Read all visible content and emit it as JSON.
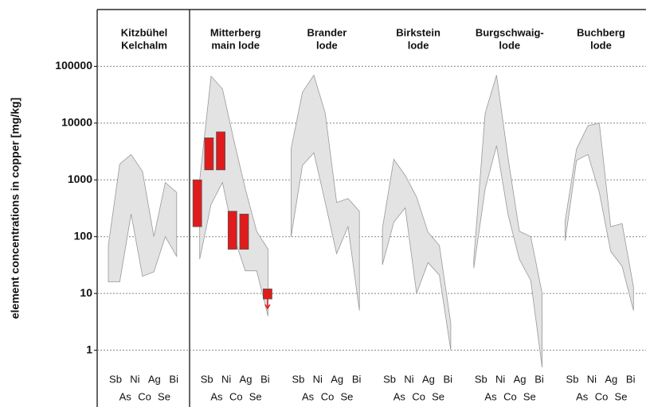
{
  "chart_data": {
    "type": "range",
    "ylabel": "element concentrations in copper [mg/kg]",
    "log": true,
    "grid": true,
    "ylim": [
      0.1,
      1000000
    ],
    "yticks": [
      1,
      10,
      100,
      1000,
      10000,
      100000
    ],
    "categories": [
      "Sb",
      "As",
      "Ni",
      "Co",
      "Ag",
      "Se",
      "Bi"
    ],
    "band_color": "#e3e3e3",
    "bar_color": "#e01b1b",
    "panels": [
      {
        "title": [
          "Kitzbühel",
          "Kelchalm"
        ],
        "max": [
          70,
          1900,
          2800,
          1400,
          100,
          900,
          600
        ],
        "min": [
          16,
          16,
          250,
          20,
          24,
          100,
          45
        ]
      },
      {
        "title": [
          "Mitterberg",
          "main lode"
        ],
        "max": [
          1000,
          67000,
          40000,
          5000,
          700,
          125,
          60
        ],
        "min": [
          40,
          370,
          900,
          100,
          25,
          25,
          4
        ],
        "bars": {
          "low": [
            150,
            1500,
            1500,
            60,
            60,
            null,
            8
          ],
          "high": [
            1000,
            5500,
            7000,
            280,
            250,
            null,
            12
          ]
        }
      },
      {
        "title": [
          "Brander",
          "lode"
        ],
        "max": [
          3500,
          35000,
          70000,
          15000,
          400,
          470,
          280
        ],
        "min": [
          100,
          1800,
          3000,
          400,
          50,
          150,
          5
        ]
      },
      {
        "title": [
          "Birkstein",
          "lode"
        ],
        "max": [
          140,
          2300,
          1200,
          500,
          120,
          70,
          3
        ],
        "min": [
          32,
          180,
          320,
          10,
          35,
          21,
          1
        ]
      },
      {
        "title": [
          "Burgschwaig-",
          "lode"
        ],
        "max": [
          40,
          15000,
          70000,
          2500,
          125,
          100,
          10
        ],
        "min": [
          28,
          700,
          4000,
          250,
          40,
          17,
          0.5
        ]
      },
      {
        "title": [
          "Buchberg",
          "lode"
        ],
        "max": [
          190,
          3500,
          9000,
          10000,
          150,
          170,
          13
        ],
        "min": [
          85,
          2200,
          2800,
          600,
          55,
          30,
          5
        ]
      }
    ]
  }
}
